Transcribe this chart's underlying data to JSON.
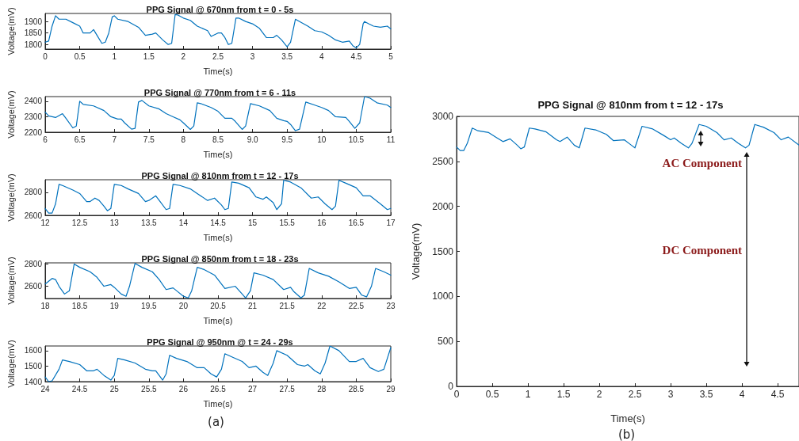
{
  "chart_data": [
    {
      "type": "line",
      "title": "PPG Signal @ 670nm from t = 0 - 5s",
      "xlabel": "Time(s)",
      "ylabel": "Voltage(mV)",
      "xlim": [
        0,
        5
      ],
      "xticks": [
        0,
        0.5,
        1,
        1.5,
        2,
        2.5,
        3,
        3.5,
        4,
        4.5,
        5
      ],
      "ylim": [
        1780,
        1935
      ],
      "yticks": [
        1800,
        1850,
        1900
      ],
      "series": [
        {
          "color": "#0072bd",
          "x": [
            0,
            0.05,
            0.1,
            0.15,
            0.2,
            0.3,
            0.4,
            0.5,
            0.55,
            0.6,
            0.65,
            0.7,
            0.75,
            0.82,
            0.87,
            0.92,
            0.97,
            1.0,
            1.05,
            1.2,
            1.35,
            1.45,
            1.55,
            1.6,
            1.7,
            1.78,
            1.83,
            1.88,
            1.92,
            2.0,
            2.1,
            2.2,
            2.35,
            2.4,
            2.5,
            2.55,
            2.6,
            2.65,
            2.7,
            2.76,
            2.8,
            2.9,
            3.0,
            3.1,
            3.2,
            3.3,
            3.35,
            3.42,
            3.5,
            3.55,
            3.62,
            3.65,
            3.8,
            3.9,
            4.0,
            4.1,
            4.2,
            4.3,
            4.4,
            4.45,
            4.5,
            4.55,
            4.6,
            4.62,
            4.68,
            4.75,
            4.85,
            4.95,
            5.0
          ],
          "values": [
            1810,
            1815,
            1880,
            1925,
            1910,
            1910,
            1895,
            1880,
            1850,
            1850,
            1850,
            1865,
            1840,
            1805,
            1810,
            1850,
            1920,
            1925,
            1910,
            1900,
            1875,
            1840,
            1845,
            1850,
            1820,
            1800,
            1805,
            1930,
            1928,
            1915,
            1905,
            1880,
            1860,
            1835,
            1850,
            1850,
            1830,
            1800,
            1805,
            1915,
            1915,
            1900,
            1890,
            1870,
            1830,
            1830,
            1840,
            1820,
            1790,
            1810,
            1910,
            1905,
            1880,
            1860,
            1855,
            1840,
            1820,
            1810,
            1815,
            1795,
            1785,
            1800,
            1890,
            1900,
            1890,
            1880,
            1875,
            1880,
            1868
          ]
        }
      ]
    },
    {
      "type": "line",
      "title": "PPG Signal @ 770nm from t = 6 - 11s",
      "xlabel": "Time(s)",
      "ylabel": "Voltage(mV)",
      "xlim": [
        6,
        11
      ],
      "xticks": [
        6,
        6.5,
        7,
        7.5,
        8,
        8.5,
        {
          "value": 9,
          "label": "9.0"
        },
        9.5,
        10,
        10.5,
        11
      ],
      "ylim": [
        2200,
        2430
      ],
      "yticks": [
        2200,
        2300,
        2400
      ],
      "series": [
        {
          "color": "#0072bd",
          "x": [
            6,
            6.05,
            6.15,
            6.25,
            6.3,
            6.4,
            6.45,
            6.5,
            6.55,
            6.7,
            6.85,
            6.95,
            7.05,
            7.1,
            7.15,
            7.25,
            7.3,
            7.35,
            7.4,
            7.5,
            7.65,
            7.75,
            7.85,
            7.95,
            8.0,
            8.1,
            8.15,
            8.2,
            8.25,
            8.4,
            8.5,
            8.6,
            8.7,
            8.75,
            8.85,
            8.9,
            8.97,
            9.1,
            9.25,
            9.35,
            9.45,
            9.5,
            9.55,
            9.62,
            9.68,
            9.77,
            9.9,
            10.0,
            10.1,
            10.2,
            10.35,
            10.4,
            10.48,
            10.55,
            10.62,
            10.7,
            10.8,
            10.95,
            11.0
          ],
          "values": [
            2330,
            2305,
            2295,
            2320,
            2290,
            2228,
            2240,
            2400,
            2380,
            2370,
            2340,
            2300,
            2285,
            2285,
            2260,
            2220,
            2225,
            2395,
            2405,
            2370,
            2350,
            2320,
            2300,
            2280,
            2260,
            2218,
            2240,
            2390,
            2385,
            2360,
            2335,
            2290,
            2290,
            2270,
            2218,
            2240,
            2385,
            2370,
            2340,
            2290,
            2275,
            2270,
            2250,
            2210,
            2220,
            2395,
            2375,
            2360,
            2340,
            2300,
            2295,
            2270,
            2225,
            2260,
            2430,
            2420,
            2390,
            2375,
            2360
          ]
        }
      ]
    },
    {
      "type": "line",
      "title": "PPG Signal @ 810nm from t = 12 - 17s",
      "xlabel": "Time(s)",
      "ylabel": "Voltage(mV)",
      "xlim": [
        12,
        17
      ],
      "xticks": [
        12,
        12.5,
        13,
        13.5,
        14,
        14.5,
        15,
        15.5,
        16,
        16.5,
        17
      ],
      "ylim": [
        2600,
        2910
      ],
      "yticks": [
        2600,
        2800
      ],
      "series": [
        {
          "color": "#0072bd",
          "x": [
            12,
            12.05,
            12.1,
            12.15,
            12.2,
            12.25,
            12.4,
            12.5,
            12.6,
            12.65,
            12.72,
            12.78,
            12.85,
            12.9,
            12.95,
            13.0,
            13.1,
            13.2,
            13.35,
            13.45,
            13.5,
            13.6,
            13.65,
            13.75,
            13.8,
            13.85,
            13.95,
            14.1,
            14.2,
            14.35,
            14.45,
            14.55,
            14.6,
            14.65,
            14.7,
            14.8,
            14.95,
            15.05,
            15.15,
            15.2,
            15.3,
            15.35,
            15.42,
            15.45,
            15.55,
            15.7,
            15.85,
            15.95,
            16.05,
            16.15,
            16.2,
            16.25,
            16.35,
            16.5,
            16.6,
            16.7,
            16.85,
            16.95,
            17.0
          ],
          "values": [
            2660,
            2620,
            2620,
            2700,
            2870,
            2860,
            2820,
            2790,
            2720,
            2720,
            2750,
            2730,
            2680,
            2640,
            2660,
            2870,
            2860,
            2830,
            2790,
            2720,
            2730,
            2770,
            2730,
            2650,
            2660,
            2870,
            2860,
            2830,
            2790,
            2730,
            2750,
            2690,
            2650,
            2660,
            2890,
            2880,
            2840,
            2760,
            2740,
            2760,
            2710,
            2650,
            2700,
            2905,
            2890,
            2840,
            2750,
            2760,
            2700,
            2650,
            2680,
            2905,
            2880,
            2840,
            2770,
            2770,
            2700,
            2650,
            2660
          ]
        }
      ]
    },
    {
      "type": "line",
      "title": "PPG Signal @ 850nm from t = 18 - 23s",
      "xlabel": "Time(s)",
      "ylabel": "Voltage(mV)",
      "xlim": [
        18,
        23
      ],
      "xticks": [
        18,
        18.5,
        19,
        19.5,
        20,
        20.5,
        21,
        21.5,
        22,
        22.5,
        23
      ],
      "ylim": [
        2490,
        2810
      ],
      "yticks": [
        2600,
        2800
      ],
      "series": [
        {
          "color": "#0072bd",
          "x": [
            18,
            18.1,
            18.15,
            18.2,
            18.28,
            18.35,
            18.42,
            18.5,
            18.65,
            18.75,
            18.85,
            18.95,
            19.0,
            19.1,
            19.17,
            19.22,
            19.3,
            19.4,
            19.55,
            19.65,
            19.75,
            19.85,
            19.9,
            20.0,
            20.07,
            20.12,
            20.2,
            20.3,
            20.45,
            20.6,
            20.75,
            20.85,
            20.9,
            20.97,
            21.02,
            21.15,
            21.3,
            21.45,
            21.55,
            21.6,
            21.7,
            21.75,
            21.82,
            21.95,
            22.1,
            22.25,
            22.4,
            22.5,
            22.58,
            22.65,
            22.72,
            22.78,
            22.9,
            23.0
          ],
          "values": [
            2620,
            2670,
            2660,
            2600,
            2530,
            2560,
            2800,
            2770,
            2730,
            2680,
            2600,
            2615,
            2590,
            2530,
            2510,
            2600,
            2805,
            2770,
            2730,
            2660,
            2570,
            2585,
            2560,
            2510,
            2495,
            2560,
            2770,
            2750,
            2700,
            2580,
            2600,
            2530,
            2495,
            2560,
            2720,
            2700,
            2660,
            2570,
            2590,
            2550,
            2495,
            2520,
            2760,
            2720,
            2690,
            2640,
            2580,
            2590,
            2520,
            2505,
            2600,
            2760,
            2730,
            2700
          ]
        }
      ]
    },
    {
      "type": "line",
      "title": "PPG Signal @ 950nm @ t = 24 - 29s",
      "xlabel": "Time(s)",
      "ylabel": "Voltage(mV)",
      "xlim": [
        24,
        29
      ],
      "xticks": [
        24,
        24.5,
        25,
        25.5,
        26,
        26.5,
        27,
        27.5,
        28,
        28.5,
        29
      ],
      "ylim": [
        1400,
        1630
      ],
      "yticks": [
        1400,
        1500,
        1600
      ],
      "annotations": [
        "(a)"
      ],
      "series": [
        {
          "color": "#0072bd",
          "x": [
            24,
            24.05,
            24.1,
            24.2,
            24.25,
            24.35,
            24.5,
            24.6,
            24.7,
            24.75,
            24.85,
            24.95,
            25.0,
            25.05,
            25.15,
            25.3,
            25.45,
            25.55,
            25.6,
            25.7,
            25.75,
            25.8,
            25.9,
            26.05,
            26.2,
            26.3,
            26.4,
            26.48,
            26.55,
            26.6,
            26.7,
            26.85,
            26.95,
            27.05,
            27.15,
            27.22,
            27.3,
            27.35,
            27.5,
            27.65,
            27.75,
            27.8,
            27.9,
            27.98,
            28.05,
            28.12,
            28.25,
            28.4,
            28.5,
            28.6,
            28.7,
            28.82,
            28.9,
            29.0
          ],
          "values": [
            1430,
            1400,
            1405,
            1480,
            1540,
            1530,
            1510,
            1470,
            1470,
            1480,
            1440,
            1410,
            1440,
            1550,
            1540,
            1520,
            1480,
            1470,
            1470,
            1410,
            1450,
            1570,
            1550,
            1530,
            1490,
            1490,
            1450,
            1430,
            1480,
            1580,
            1560,
            1530,
            1490,
            1500,
            1460,
            1440,
            1520,
            1600,
            1570,
            1510,
            1500,
            1510,
            1470,
            1450,
            1520,
            1630,
            1600,
            1530,
            1530,
            1550,
            1490,
            1465,
            1480,
            1620
          ]
        }
      ]
    },
    {
      "type": "line",
      "title": "PPG Signal @ 810nm from t = 12 - 17s",
      "xlabel": "Time(s)",
      "ylabel": "Voltage(mV)",
      "xlim": [
        0,
        4.8
      ],
      "xticks": [
        0,
        0.5,
        1,
        1.5,
        2,
        2.5,
        3,
        3.5,
        4,
        4.5
      ],
      "ylim": [
        0,
        3000
      ],
      "yticks": [
        0,
        500,
        1000,
        1500,
        2000,
        2500,
        3000
      ],
      "annotations": [
        "AC Component",
        "DC Component",
        "(b)"
      ],
      "series": [
        {
          "color": "#0072bd",
          "x": [
            0,
            0.05,
            0.1,
            0.15,
            0.22,
            0.3,
            0.45,
            0.55,
            0.65,
            0.75,
            0.85,
            0.9,
            0.95,
            1.02,
            1.1,
            1.25,
            1.4,
            1.45,
            1.55,
            1.65,
            1.72,
            1.8,
            1.95,
            2.1,
            2.2,
            2.35,
            2.45,
            2.5,
            2.6,
            2.75,
            2.9,
            3.0,
            3.05,
            3.15,
            3.25,
            3.3,
            3.4,
            3.5,
            3.65,
            3.75,
            3.85,
            3.95,
            4.05,
            4.1,
            4.18,
            4.3,
            4.45,
            4.55,
            4.65,
            4.8
          ],
          "values": [
            2660,
            2620,
            2620,
            2700,
            2870,
            2840,
            2820,
            2770,
            2720,
            2750,
            2680,
            2640,
            2660,
            2870,
            2860,
            2830,
            2740,
            2720,
            2770,
            2680,
            2650,
            2870,
            2850,
            2800,
            2730,
            2740,
            2680,
            2650,
            2890,
            2860,
            2790,
            2740,
            2760,
            2700,
            2650,
            2700,
            2910,
            2890,
            2820,
            2740,
            2760,
            2700,
            2650,
            2680,
            2910,
            2880,
            2820,
            2740,
            2770,
            2680
          ]
        }
      ]
    }
  ]
}
